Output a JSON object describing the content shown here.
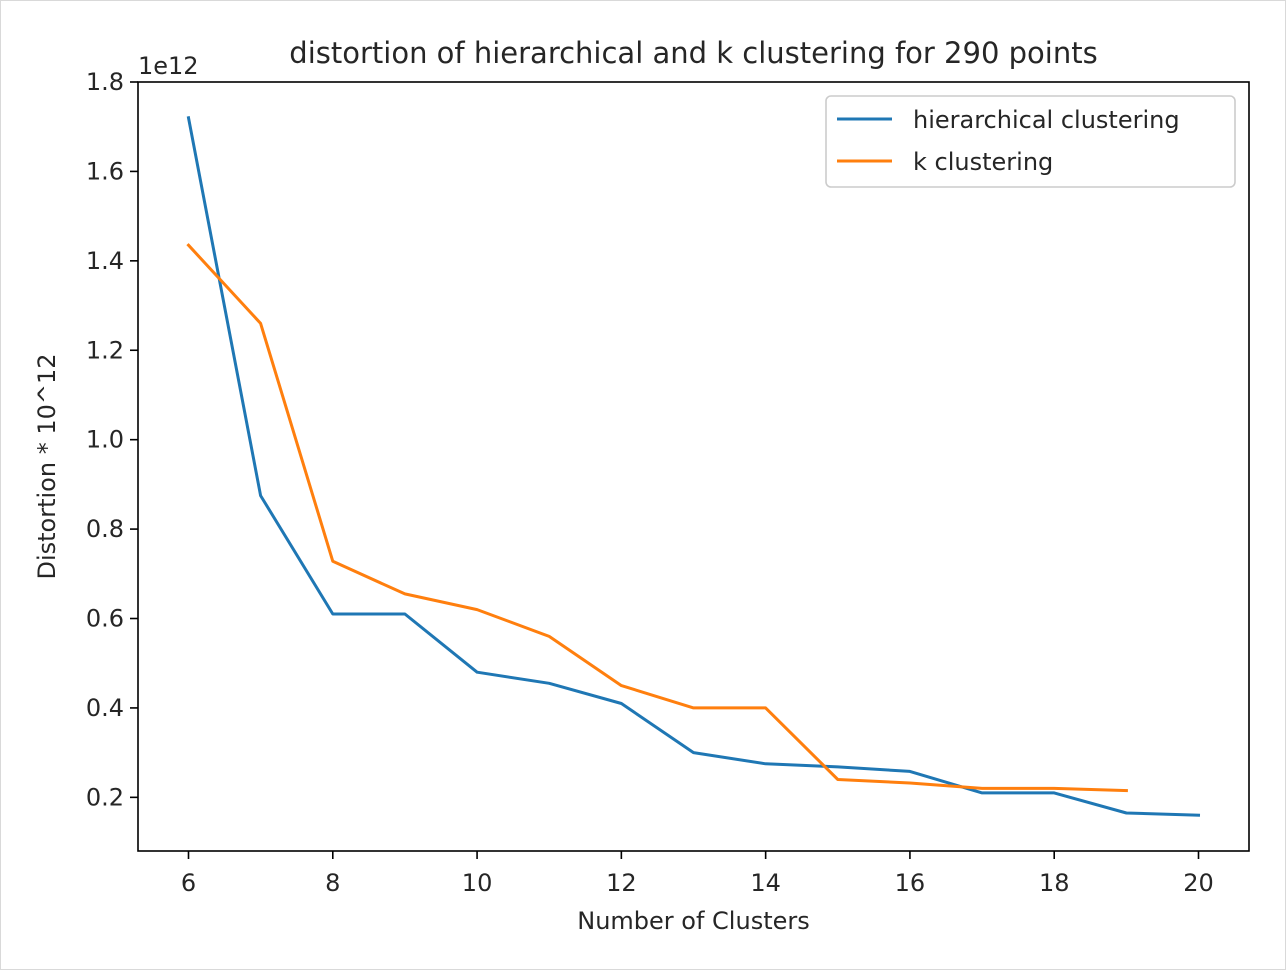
{
  "chart_data": {
    "type": "line",
    "title": "distortion of hierarchical and k clustering for 290 points",
    "xlabel": "Number of Clusters",
    "ylabel": "Distortion * 10^12",
    "offset_label": "1e12",
    "xlim": [
      5.3,
      20.7
    ],
    "ylim": [
      0.08,
      1.8
    ],
    "xticks": [
      6,
      8,
      10,
      12,
      14,
      16,
      18,
      20
    ],
    "xtick_labels": [
      "6",
      "8",
      "10",
      "12",
      "14",
      "16",
      "18",
      "20"
    ],
    "yticks": [
      0.2,
      0.4,
      0.6,
      0.8,
      1.0,
      1.2,
      1.4,
      1.6,
      1.8
    ],
    "ytick_labels": [
      "0.2",
      "0.4",
      "0.6",
      "0.8",
      "1.0",
      "1.2",
      "1.4",
      "1.6",
      "1.8"
    ],
    "grid": false,
    "legend_position": "top-right",
    "series": [
      {
        "name": "hierarchical clustering",
        "color": "#1f77b4",
        "x": [
          6,
          7,
          8,
          9,
          10,
          11,
          12,
          13,
          14,
          15,
          16,
          17,
          18,
          19,
          20
        ],
        "y": [
          1.72,
          0.875,
          0.61,
          0.61,
          0.48,
          0.455,
          0.41,
          0.3,
          0.275,
          0.268,
          0.258,
          0.21,
          0.21,
          0.165,
          0.16
        ]
      },
      {
        "name": "k clustering",
        "color": "#ff7f0e",
        "x": [
          6,
          7,
          8,
          9,
          10,
          11,
          12,
          13,
          14,
          15,
          16,
          17,
          18,
          19
        ],
        "y": [
          1.435,
          1.26,
          0.728,
          0.655,
          0.62,
          0.56,
          0.45,
          0.4,
          0.4,
          0.24,
          0.232,
          0.22,
          0.22,
          0.215
        ]
      }
    ]
  }
}
